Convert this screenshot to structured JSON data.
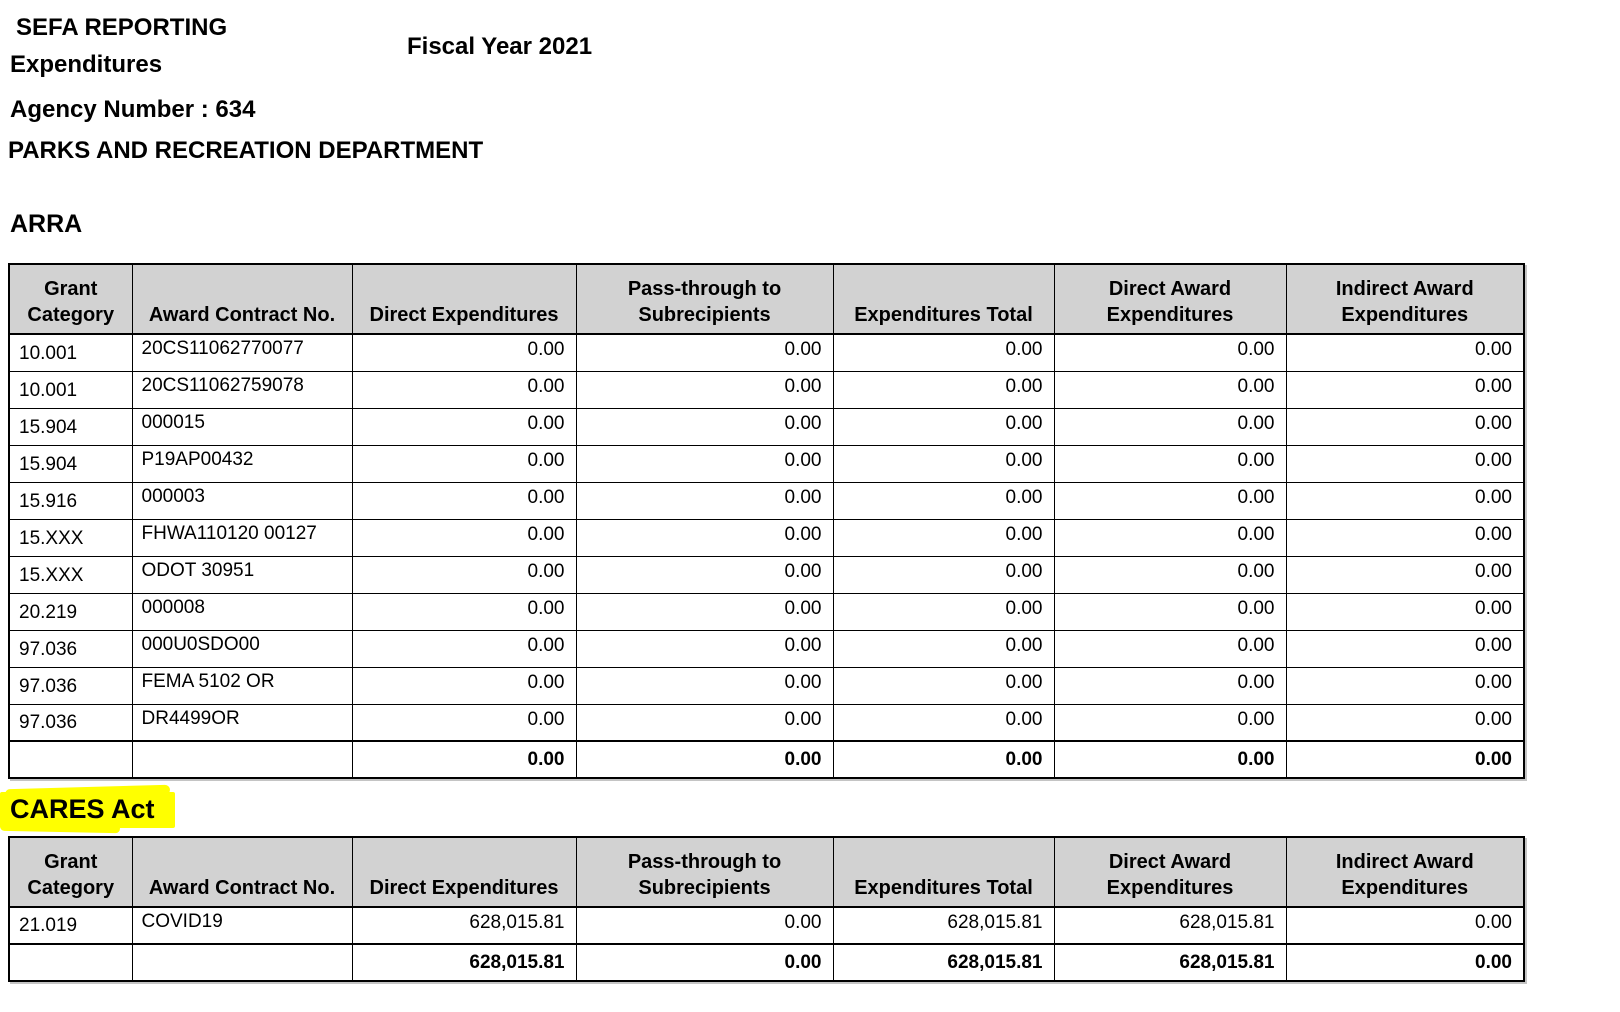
{
  "header": {
    "report_title": "SEFA REPORTING",
    "report_subtitle": "Expenditures",
    "fiscal_year": "Fiscal Year 2021",
    "agency_number": "Agency Number : 634",
    "agency_name": "PARKS AND RECREATION DEPARTMENT"
  },
  "table_columns": [
    "Grant Category",
    "Award Contract No.",
    "Direct Expenditures",
    "Pass-through to Subrecipients",
    "Expenditures Total",
    "Direct Award Expenditures",
    "Indirect Award Expenditures"
  ],
  "sections": [
    {
      "title": "ARRA",
      "highlighted": false,
      "rows": [
        [
          "10.001",
          "20CS11062770077",
          "0.00",
          "0.00",
          "0.00",
          "0.00",
          "0.00"
        ],
        [
          "10.001",
          "20CS11062759078",
          "0.00",
          "0.00",
          "0.00",
          "0.00",
          "0.00"
        ],
        [
          "15.904",
          "000015",
          "0.00",
          "0.00",
          "0.00",
          "0.00",
          "0.00"
        ],
        [
          "15.904",
          "P19AP00432",
          "0.00",
          "0.00",
          "0.00",
          "0.00",
          "0.00"
        ],
        [
          "15.916",
          "000003",
          "0.00",
          "0.00",
          "0.00",
          "0.00",
          "0.00"
        ],
        [
          "15.XXX",
          "FHWA110120 00127",
          "0.00",
          "0.00",
          "0.00",
          "0.00",
          "0.00"
        ],
        [
          "15.XXX",
          "ODOT 30951",
          "0.00",
          "0.00",
          "0.00",
          "0.00",
          "0.00"
        ],
        [
          "20.219",
          "000008",
          "0.00",
          "0.00",
          "0.00",
          "0.00",
          "0.00"
        ],
        [
          "97.036",
          "000U0SDO00",
          "0.00",
          "0.00",
          "0.00",
          "0.00",
          "0.00"
        ],
        [
          "97.036",
          "FEMA 5102 OR",
          "0.00",
          "0.00",
          "0.00",
          "0.00",
          "0.00"
        ],
        [
          "97.036",
          "DR4499OR",
          "0.00",
          "0.00",
          "0.00",
          "0.00",
          "0.00"
        ]
      ],
      "total_row": [
        "",
        "",
        "0.00",
        "0.00",
        "0.00",
        "0.00",
        "0.00"
      ]
    },
    {
      "title": "CARES Act",
      "highlighted": true,
      "rows": [
        [
          "21.019",
          "COVID19",
          "628,015.81",
          "0.00",
          "628,015.81",
          "628,015.81",
          "0.00"
        ]
      ],
      "total_row": [
        "",
        "",
        "628,015.81",
        "0.00",
        "628,015.81",
        "628,015.81",
        "0.00"
      ]
    }
  ],
  "colors": {
    "table_header_bg": "#d2d2d2",
    "highlight": "#ffff00",
    "border": "#000000",
    "text": "#000000",
    "page_bg": "#ffffff"
  }
}
